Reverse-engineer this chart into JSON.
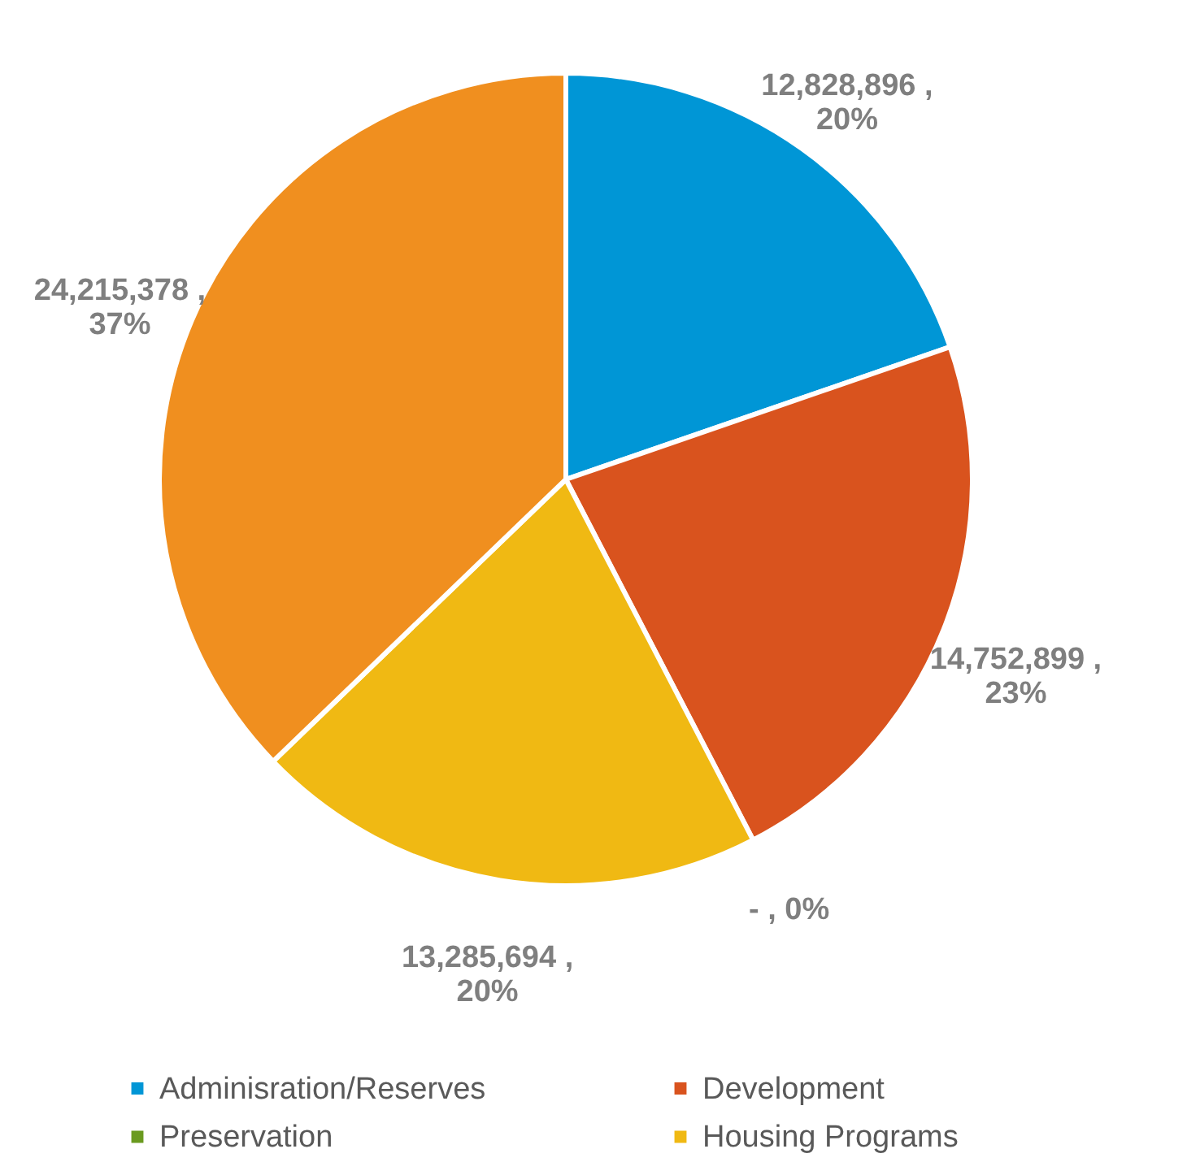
{
  "chart_data": {
    "type": "pie",
    "categories": [
      "Adminisration/Reserves",
      "Development",
      "Preservation",
      "Housing Programs",
      null
    ],
    "values": [
      12828896,
      14752899,
      0,
      13285694,
      24215378
    ],
    "colors": [
      "#0096d6",
      "#d9531e",
      "#6a9a1f",
      "#f0b913",
      "#f08f1f"
    ],
    "value_labels": [
      "12,828,896 ,\n20%",
      "14,752,899 ,\n23%",
      "-   , 0%",
      "13,285,694 ,\n20%",
      "24,215,378 ,\n37%"
    ],
    "legend": "bottom"
  }
}
